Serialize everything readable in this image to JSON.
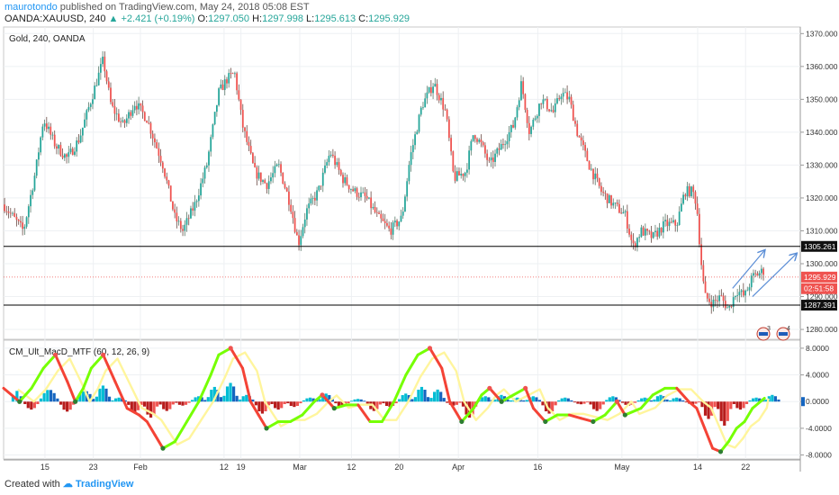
{
  "header": {
    "user": "maurotondo",
    "published_text": "published on TradingView.com, May 24, 2018 05:08 EST",
    "symbol": "OANDA:XAUUSD, 240",
    "change": "▲ +2.421 (+0.19%)",
    "o_label": "O:",
    "o_value": "1297.050",
    "h_label": "H:",
    "h_value": "1297.998",
    "l_label": "L:",
    "l_value": "1295.613",
    "c_label": "C:",
    "c_value": "1295.929"
  },
  "footer": {
    "created_with": "Created with",
    "brand": "TradingView"
  },
  "colors": {
    "up": "#26a69a",
    "down": "#ef5350",
    "line": "#000000",
    "price_line": "#ef5350",
    "arrow": "#5b8ed6"
  },
  "chart_data": [
    {
      "type": "candlestick",
      "label": "Gold, 240, OANDA",
      "ylim": [
        1277,
        1372
      ],
      "y_ticks": [
        "1370.000",
        "1360.000",
        "1350.000",
        "1340.000",
        "1330.000",
        "1320.000",
        "1310.000",
        "1300.000",
        "1290.000",
        "1280.000"
      ],
      "y_tick_values": [
        1370,
        1360,
        1350,
        1340,
        1330,
        1320,
        1310,
        1300,
        1290,
        1280
      ],
      "x_ticks": [
        "15",
        "23",
        "Feb",
        "12",
        "19",
        "Mar",
        "12",
        "20",
        "Apr",
        "16",
        "May",
        "14",
        "22"
      ],
      "x_tick_positions": [
        0.0519,
        0.1126,
        0.1717,
        0.2767,
        0.2979,
        0.3717,
        0.4366,
        0.4965,
        0.5708,
        0.6705,
        0.7761,
        0.8712,
        0.9313
      ],
      "path": [
        [
          0,
          1318
        ],
        [
          0.025,
          1310
        ],
        [
          0.04,
          1328
        ],
        [
          0.05,
          1344
        ],
        [
          0.065,
          1336
        ],
        [
          0.08,
          1332
        ],
        [
          0.095,
          1338
        ],
        [
          0.11,
          1350
        ],
        [
          0.125,
          1362
        ],
        [
          0.135,
          1348
        ],
        [
          0.15,
          1342
        ],
        [
          0.165,
          1349
        ],
        [
          0.18,
          1344
        ],
        [
          0.2,
          1330
        ],
        [
          0.215,
          1314
        ],
        [
          0.225,
          1310
        ],
        [
          0.24,
          1318
        ],
        [
          0.255,
          1330
        ],
        [
          0.27,
          1352
        ],
        [
          0.28,
          1356
        ],
        [
          0.29,
          1358
        ],
        [
          0.3,
          1342
        ],
        [
          0.315,
          1328
        ],
        [
          0.33,
          1324
        ],
        [
          0.345,
          1330
        ],
        [
          0.36,
          1318
        ],
        [
          0.37,
          1306
        ],
        [
          0.38,
          1316
        ],
        [
          0.395,
          1322
        ],
        [
          0.41,
          1334
        ],
        [
          0.425,
          1326
        ],
        [
          0.44,
          1322
        ],
        [
          0.455,
          1320
        ],
        [
          0.47,
          1314
        ],
        [
          0.485,
          1310
        ],
        [
          0.5,
          1314
        ],
        [
          0.51,
          1332
        ],
        [
          0.525,
          1348
        ],
        [
          0.54,
          1355
        ],
        [
          0.555,
          1346
        ],
        [
          0.565,
          1326
        ],
        [
          0.58,
          1328
        ],
        [
          0.59,
          1340
        ],
        [
          0.6,
          1336
        ],
        [
          0.61,
          1330
        ],
        [
          0.625,
          1336
        ],
        [
          0.64,
          1342
        ],
        [
          0.65,
          1355
        ],
        [
          0.66,
          1340
        ],
        [
          0.675,
          1350
        ],
        [
          0.69,
          1346
        ],
        [
          0.7,
          1352
        ],
        [
          0.71,
          1350
        ],
        [
          0.72,
          1340
        ],
        [
          0.735,
          1330
        ],
        [
          0.75,
          1322
        ],
        [
          0.765,
          1318
        ],
        [
          0.78,
          1315
        ],
        [
          0.79,
          1305
        ],
        [
          0.8,
          1310
        ],
        [
          0.815,
          1308
        ],
        [
          0.83,
          1312
        ],
        [
          0.845,
          1312
        ],
        [
          0.855,
          1322
        ],
        [
          0.865,
          1322
        ],
        [
          0.87,
          1318
        ],
        [
          0.875,
          1302
        ],
        [
          0.88,
          1290
        ],
        [
          0.89,
          1288
        ],
        [
          0.9,
          1290
        ],
        [
          0.91,
          1286
        ],
        [
          0.92,
          1292
        ],
        [
          0.93,
          1290
        ],
        [
          0.94,
          1296
        ],
        [
          0.955,
          1298
        ]
      ],
      "horizontal_lines": [
        1305.261,
        1287.391
      ],
      "price_labels": [
        {
          "value": 1305.261,
          "text": "1305.261",
          "style": "dark"
        },
        {
          "value": 1295.929,
          "text": "1295.929",
          "style": "red"
        },
        {
          "value": 1292.4,
          "text": "02:51:58",
          "style": "red"
        },
        {
          "value": 1287.391,
          "text": "1287.391",
          "style": "dark"
        }
      ],
      "current_price": 1295.929,
      "arrows": [
        {
          "from": [
            0.915,
            1292.5
          ],
          "to": [
            0.955,
            1304
          ]
        },
        {
          "from": [
            0.94,
            1290
          ],
          "to": [
            0.995,
            1303
          ]
        }
      ],
      "event_badges": [
        "3",
        "4"
      ]
    },
    {
      "type": "indicator",
      "label": "CM_Ult_MacD_MTF (60, 12, 26, 9)",
      "ylim": [
        -8.6,
        9.2
      ],
      "y_ticks": [
        "8.0000",
        "4.0000",
        "0.0000",
        "-4.0000",
        "-8.0000"
      ],
      "y_tick_values": [
        8,
        4,
        0,
        -4,
        -8
      ],
      "macd": [
        [
          0,
          2
        ],
        [
          0.02,
          0
        ],
        [
          0.035,
          2
        ],
        [
          0.05,
          5
        ],
        [
          0.065,
          7
        ],
        [
          0.08,
          3
        ],
        [
          0.09,
          0
        ],
        [
          0.1,
          2
        ],
        [
          0.11,
          5
        ],
        [
          0.125,
          7
        ],
        [
          0.14,
          3
        ],
        [
          0.155,
          -1
        ],
        [
          0.17,
          -2
        ],
        [
          0.18,
          -3
        ],
        [
          0.19,
          -5
        ],
        [
          0.2,
          -7
        ],
        [
          0.215,
          -6
        ],
        [
          0.23,
          -3
        ],
        [
          0.245,
          0
        ],
        [
          0.26,
          4
        ],
        [
          0.27,
          7
        ],
        [
          0.285,
          8
        ],
        [
          0.3,
          5
        ],
        [
          0.31,
          0
        ],
        [
          0.32,
          -2
        ],
        [
          0.33,
          -4
        ],
        [
          0.345,
          -3
        ],
        [
          0.36,
          -3
        ],
        [
          0.375,
          -2
        ],
        [
          0.39,
          0
        ],
        [
          0.4,
          1
        ],
        [
          0.415,
          -1
        ],
        [
          0.43,
          -0.5
        ],
        [
          0.445,
          -0.5
        ],
        [
          0.46,
          -3
        ],
        [
          0.475,
          -3
        ],
        [
          0.49,
          0
        ],
        [
          0.505,
          4
        ],
        [
          0.52,
          7
        ],
        [
          0.535,
          8
        ],
        [
          0.55,
          5
        ],
        [
          0.56,
          0
        ],
        [
          0.575,
          -3
        ],
        [
          0.59,
          -1
        ],
        [
          0.6,
          1
        ],
        [
          0.61,
          2
        ],
        [
          0.625,
          0
        ],
        [
          0.64,
          1
        ],
        [
          0.655,
          2
        ],
        [
          0.665,
          -1
        ],
        [
          0.68,
          -3
        ],
        [
          0.695,
          -2
        ],
        [
          0.71,
          -2
        ],
        [
          0.725,
          -2.5
        ],
        [
          0.74,
          -3
        ],
        [
          0.755,
          -2
        ],
        [
          0.77,
          0
        ],
        [
          0.78,
          -2
        ],
        [
          0.8,
          -1
        ],
        [
          0.815,
          1
        ],
        [
          0.83,
          2
        ],
        [
          0.845,
          2
        ],
        [
          0.86,
          0
        ],
        [
          0.87,
          -1
        ],
        [
          0.88,
          -4
        ],
        [
          0.89,
          -7
        ],
        [
          0.9,
          -7.5
        ],
        [
          0.91,
          -6
        ],
        [
          0.92,
          -4
        ],
        [
          0.93,
          -3
        ],
        [
          0.94,
          -1
        ],
        [
          0.955,
          0.5
        ]
      ],
      "signal_offset": 0.018,
      "hist": [
        [
          0.01,
          1.6
        ],
        [
          0.025,
          -1.2
        ],
        [
          0.045,
          1.8
        ],
        [
          0.07,
          -1.5
        ],
        [
          0.09,
          1.6
        ],
        [
          0.115,
          2.4
        ],
        [
          0.135,
          0.6
        ],
        [
          0.155,
          -1.6
        ],
        [
          0.175,
          -2.4
        ],
        [
          0.195,
          -1.4
        ],
        [
          0.215,
          -0.6
        ],
        [
          0.235,
          0.8
        ],
        [
          0.255,
          2.2
        ],
        [
          0.275,
          2.8
        ],
        [
          0.295,
          1.0
        ],
        [
          0.315,
          -1.8
        ],
        [
          0.335,
          -1.2
        ],
        [
          0.355,
          -0.8
        ],
        [
          0.375,
          0.6
        ],
        [
          0.395,
          1.2
        ],
        [
          0.415,
          -0.8
        ],
        [
          0.435,
          0.4
        ],
        [
          0.455,
          -1.4
        ],
        [
          0.475,
          -0.8
        ],
        [
          0.495,
          1.2
        ],
        [
          0.515,
          2.2
        ],
        [
          0.535,
          1.8
        ],
        [
          0.555,
          -0.6
        ],
        [
          0.575,
          -2.4
        ],
        [
          0.595,
          0.8
        ],
        [
          0.615,
          1.0
        ],
        [
          0.635,
          0.6
        ],
        [
          0.655,
          0.8
        ],
        [
          0.675,
          -1.8
        ],
        [
          0.695,
          0.6
        ],
        [
          0.715,
          -0.4
        ],
        [
          0.735,
          -1.4
        ],
        [
          0.755,
          0.8
        ],
        [
          0.775,
          -0.6
        ],
        [
          0.795,
          0.6
        ],
        [
          0.815,
          1.0
        ],
        [
          0.835,
          0.6
        ],
        [
          0.855,
          -0.4
        ],
        [
          0.875,
          -2.6
        ],
        [
          0.895,
          -3.6
        ],
        [
          0.915,
          -1.2
        ],
        [
          0.935,
          0.6
        ],
        [
          0.955,
          1.0
        ]
      ]
    }
  ]
}
